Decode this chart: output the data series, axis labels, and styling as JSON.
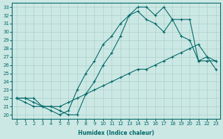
{
  "xlabel": "Humidex (Indice chaleur)",
  "xlim": [
    -0.5,
    23.5
  ],
  "ylim": [
    19.5,
    33.5
  ],
  "xticks": [
    0,
    1,
    2,
    3,
    4,
    5,
    6,
    7,
    8,
    9,
    10,
    11,
    12,
    13,
    14,
    15,
    16,
    17,
    18,
    19,
    20,
    21,
    22,
    23
  ],
  "yticks": [
    20,
    21,
    22,
    23,
    24,
    25,
    26,
    27,
    28,
    29,
    30,
    31,
    32,
    33
  ],
  "background_color": "#cce8e4",
  "grid_color": "#aacfca",
  "line_color": "#006868",
  "line1_x": [
    0,
    1,
    2,
    3,
    4,
    5,
    6,
    7,
    8,
    9,
    10,
    11,
    12,
    13,
    14,
    15,
    16,
    17,
    18,
    19,
    20,
    21,
    22,
    23
  ],
  "line1_y": [
    22.0,
    22.0,
    22.0,
    21.0,
    21.0,
    21.0,
    21.5,
    22.0,
    22.5,
    23.0,
    23.5,
    24.0,
    24.5,
    25.0,
    25.5,
    25.5,
    26.0,
    26.5,
    27.0,
    27.5,
    28.0,
    28.5,
    27.0,
    25.5
  ],
  "line2_x": [
    0,
    1,
    2,
    3,
    4,
    5,
    6,
    7,
    8,
    9,
    10,
    11,
    12,
    13,
    14,
    15,
    16,
    17,
    18,
    19,
    20,
    21,
    22,
    23
  ],
  "line2_y": [
    22.0,
    21.5,
    21.0,
    21.0,
    20.5,
    20.0,
    20.5,
    23.0,
    25.0,
    26.5,
    28.5,
    29.5,
    31.0,
    32.0,
    32.5,
    31.5,
    31.0,
    30.0,
    31.5,
    29.5,
    29.0,
    26.5,
    26.5,
    26.5
  ],
  "line3_x": [
    0,
    1,
    2,
    3,
    4,
    5,
    6,
    7,
    8,
    9,
    10,
    11,
    12,
    13,
    14,
    15,
    16,
    17,
    18,
    19,
    20,
    21,
    22,
    23
  ],
  "line3_y": [
    22.0,
    22.0,
    21.5,
    21.0,
    21.0,
    20.5,
    20.0,
    20.0,
    22.5,
    24.0,
    26.0,
    27.5,
    29.5,
    32.0,
    33.0,
    33.0,
    32.0,
    33.0,
    31.5,
    31.5,
    31.5,
    26.5,
    27.0,
    26.5
  ],
  "marker": "+",
  "markersize": 3,
  "linewidth": 0.8
}
